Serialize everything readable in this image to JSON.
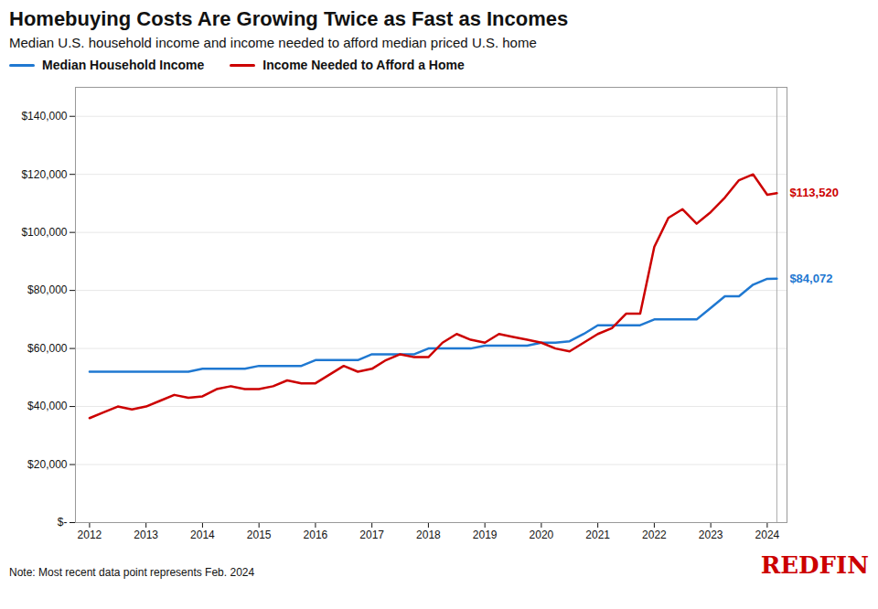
{
  "chart_data": {
    "type": "line",
    "title": "Homebuying Costs Are Growing Twice as Fast as Incomes",
    "subtitle": "Median U.S. household income and income needed to afford median priced U.S. home",
    "note": "Note: Most recent data point represents Feb. 2024",
    "logo": {
      "text": "REDFIN",
      "color": "#cc0000"
    },
    "legend": "upper left",
    "grid": true,
    "xlim": [
      2011.75,
      2024.35
    ],
    "xticks": [
      2012,
      2013,
      2014,
      2015,
      2016,
      2017,
      2018,
      2019,
      2020,
      2021,
      2022,
      2023,
      2024
    ],
    "ylim": [
      0,
      150000
    ],
    "yticks": [
      {
        "value": 0,
        "label": "$-"
      },
      {
        "value": 20000,
        "label": "$20,000"
      },
      {
        "value": 40000,
        "label": "$40,000"
      },
      {
        "value": 60000,
        "label": "$60,000"
      },
      {
        "value": 80000,
        "label": "$80,000"
      },
      {
        "value": 100000,
        "label": "$100,000"
      },
      {
        "value": 120000,
        "label": "$120,000"
      },
      {
        "value": 140000,
        "label": "$140,000"
      }
    ],
    "x": [
      2012.0,
      2012.25,
      2012.5,
      2012.75,
      2013.0,
      2013.25,
      2013.5,
      2013.75,
      2014.0,
      2014.25,
      2014.5,
      2014.75,
      2015.0,
      2015.25,
      2015.5,
      2015.75,
      2016.0,
      2016.25,
      2016.5,
      2016.75,
      2017.0,
      2017.25,
      2017.5,
      2017.75,
      2018.0,
      2018.25,
      2018.5,
      2018.75,
      2019.0,
      2019.25,
      2019.5,
      2019.75,
      2020.0,
      2020.25,
      2020.5,
      2020.75,
      2021.0,
      2021.25,
      2021.5,
      2021.75,
      2022.0,
      2022.25,
      2022.5,
      2022.75,
      2023.0,
      2023.25,
      2023.5,
      2023.75,
      2024.0,
      2024.17
    ],
    "series": [
      {
        "name": "Median Household Income",
        "color": "#1f78d1",
        "values": [
          52000,
          52000,
          52000,
          52000,
          52000,
          52000,
          52000,
          52000,
          53000,
          53000,
          53000,
          53000,
          54000,
          54000,
          54000,
          54000,
          56000,
          56000,
          56000,
          56000,
          58000,
          58000,
          58000,
          58000,
          60000,
          60000,
          60000,
          60000,
          61000,
          61000,
          61000,
          61000,
          62000,
          62000,
          62500,
          65000,
          68000,
          68000,
          68000,
          68000,
          70000,
          70000,
          70000,
          70000,
          74000,
          78000,
          78000,
          82000,
          84000,
          84072
        ]
      },
      {
        "name": "Income Needed to Afford a Home",
        "color": "#cc0000",
        "values": [
          36000,
          38000,
          40000,
          39000,
          40000,
          42000,
          44000,
          43000,
          43500,
          46000,
          47000,
          46000,
          46000,
          47000,
          49000,
          48000,
          48000,
          51000,
          54000,
          52000,
          53000,
          56000,
          58000,
          57000,
          57000,
          62000,
          65000,
          63000,
          62000,
          65000,
          64000,
          63000,
          62000,
          60000,
          59000,
          62000,
          65000,
          67000,
          72000,
          72000,
          95000,
          105000,
          108000,
          103000,
          107000,
          112000,
          118000,
          120000,
          113000,
          113520
        ]
      }
    ],
    "annotations": [
      {
        "text": "$84,072",
        "x": 2024.17,
        "y": 84072,
        "color": "#1f78d1"
      },
      {
        "text": "$113,520",
        "x": 2024.17,
        "y": 113520,
        "color": "#cc0000"
      }
    ]
  }
}
